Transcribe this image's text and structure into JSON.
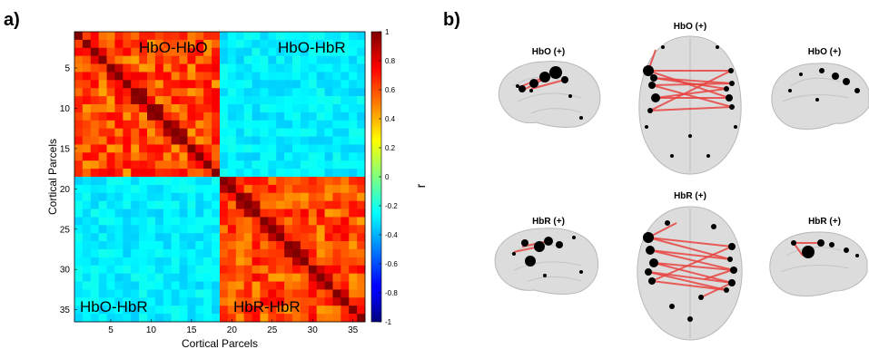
{
  "panel_a": {
    "label": "a)",
    "quadrant_labels": {
      "top_left": "HbO-HbO",
      "top_right": "HbO-HbR",
      "bottom_left": "HbO-HbR",
      "bottom_right": "HbR-HbR"
    },
    "colorbar_label": "r"
  },
  "panel_b": {
    "label": "b)",
    "views": [
      {
        "id": "hbo-left",
        "label": "HbO (+)"
      },
      {
        "id": "hbo-top",
        "label": "HbO (+)"
      },
      {
        "id": "hbo-right",
        "label": "HbO (+)"
      },
      {
        "id": "hbr-left",
        "label": "HbR (+)"
      },
      {
        "id": "hbr-top",
        "label": "HbR (+)"
      },
      {
        "id": "hbr-right",
        "label": "HbR (+)"
      }
    ],
    "edge_color": "#e8433f",
    "node_color": "#000000"
  },
  "chart_data": {
    "type": "heatmap",
    "n": 36,
    "block_size": 18,
    "xlabel": "Cortical Parcels",
    "ylabel": "Cortical Parcels",
    "xticks": [
      5,
      10,
      15,
      20,
      25,
      30,
      35
    ],
    "yticks": [
      5,
      10,
      15,
      20,
      25,
      30,
      35
    ],
    "clim": [
      -1,
      1
    ],
    "colorbar_ticks": [
      1,
      0.8,
      0.6,
      0.4,
      0.2,
      0,
      -0.2,
      -0.4,
      -0.6,
      -0.8,
      -1
    ],
    "colorbar_tick_labels": [
      "1",
      "0.8",
      "0.6",
      "0.4",
      "0.2",
      "0",
      "-0.2",
      "-0.4",
      "-0.6",
      "-0.8",
      "-1"
    ],
    "colormap": "jet",
    "approx_values": {
      "diagonal": 1,
      "within_block_mean": 0.6,
      "between_block_mean": -0.28
    }
  }
}
